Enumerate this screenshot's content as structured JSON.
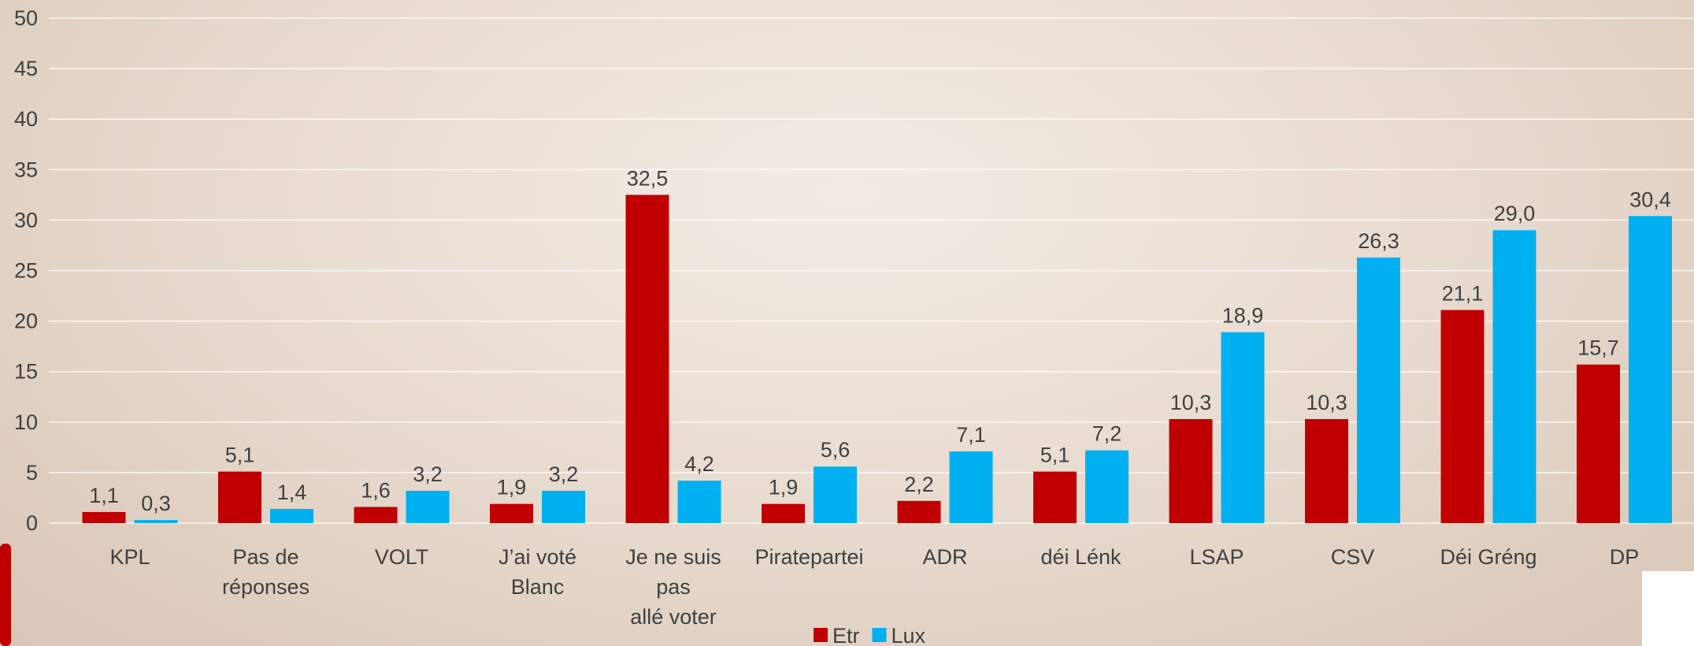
{
  "chart_data": {
    "type": "bar",
    "categories": [
      "KPL",
      "Pas de\nréponses",
      "VOLT",
      "J’ai voté\nBlanc",
      "Je ne suis pas\nallé voter",
      "Piratepartei",
      "ADR",
      "déi Lénk",
      "LSAP",
      "CSV",
      "Déi Gréng",
      "DP"
    ],
    "series": [
      {
        "name": "Etr",
        "color": "#c00000",
        "values": [
          1.1,
          5.1,
          1.6,
          1.9,
          32.5,
          1.9,
          2.2,
          5.1,
          10.3,
          10.3,
          21.1,
          15.7
        ],
        "value_labels": [
          "1,1",
          "5,1",
          "1,6",
          "1,9",
          "32,5",
          "1,9",
          "2,2",
          "5,1",
          "10,3",
          "10,3",
          "21,1",
          "15,7"
        ]
      },
      {
        "name": "Lux",
        "color": "#00b0f0",
        "values": [
          0.3,
          1.4,
          3.2,
          3.2,
          4.2,
          5.6,
          7.1,
          7.2,
          18.9,
          26.3,
          29.0,
          30.4
        ],
        "value_labels": [
          "0,3",
          "1,4",
          "3,2",
          "3,2",
          "4,2",
          "5,6",
          "7,1",
          "7,2",
          "18,9",
          "26,3",
          "29,0",
          "30,4"
        ]
      }
    ],
    "ylim": [
      0,
      50
    ],
    "yticks": [
      0,
      5,
      10,
      15,
      20,
      25,
      30,
      35,
      40,
      45,
      50
    ],
    "grid": true,
    "legend": "bottom"
  }
}
